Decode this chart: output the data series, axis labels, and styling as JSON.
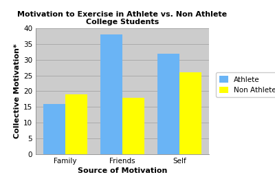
{
  "title_line1": "Motivation to Exercise in Athlete vs. Non Athlete",
  "title_line2": "College Students",
  "categories": [
    "Family",
    "Friends",
    "Self"
  ],
  "athlete_values": [
    16,
    38,
    32
  ],
  "non_athlete_values": [
    19,
    18,
    26
  ],
  "athlete_color": "#6ab4f5",
  "non_athlete_color": "#ffff00",
  "xlabel": "Source of Motivation",
  "ylabel": "Collective Motivation*",
  "ylim": [
    0,
    40
  ],
  "yticks": [
    0,
    5,
    10,
    15,
    20,
    25,
    30,
    35,
    40
  ],
  "legend_labels": [
    "Athlete",
    "Non Athlete"
  ],
  "plot_bg_color": "#cccccc",
  "fig_bg_color": "#ffffff",
  "bar_width": 0.38,
  "title_fontsize": 8,
  "axis_label_fontsize": 8,
  "tick_fontsize": 7.5,
  "legend_fontsize": 7.5,
  "grid_color": "#aaaaaa",
  "grid_linewidth": 0.7
}
